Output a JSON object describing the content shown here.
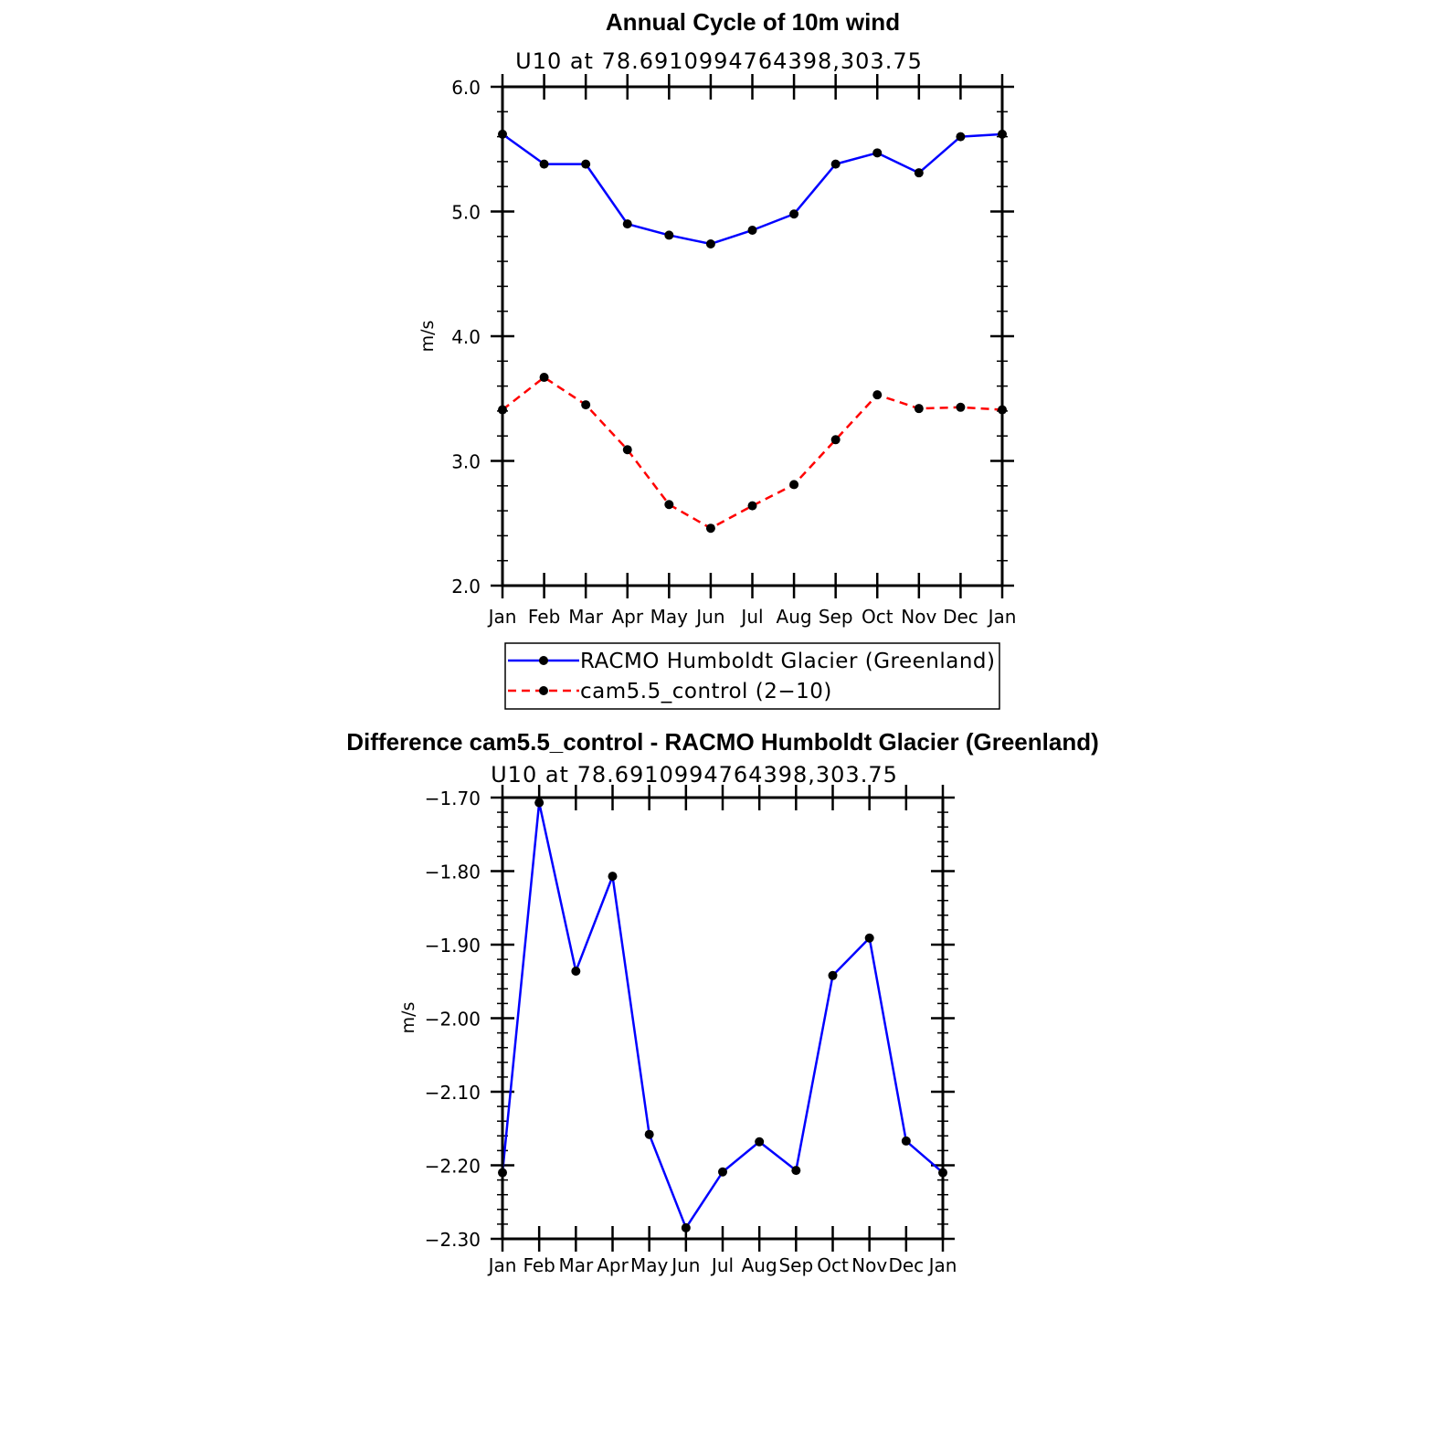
{
  "chart_data": [
    {
      "type": "line",
      "title": "Annual Cycle of 10m wind",
      "subtitle": "U10 at 78.6910994764398,303.75",
      "xlabel": "",
      "ylabel": "m/s",
      "categories": [
        "Jan",
        "Feb",
        "Mar",
        "Apr",
        "May",
        "Jun",
        "Jul",
        "Aug",
        "Sep",
        "Oct",
        "Nov",
        "Dec",
        "Jan"
      ],
      "ylim": [
        2.0,
        6.0
      ],
      "yticks": [
        "2.0",
        "3.0",
        "4.0",
        "5.0",
        "6.0"
      ],
      "ytick_values": [
        2.0,
        3.0,
        4.0,
        5.0,
        6.0
      ],
      "legend": "bottom",
      "series": [
        {
          "name": "RACMO Humboldt Glacier (Greenland)",
          "color": "#0000ff",
          "style": "solid",
          "values": [
            5.62,
            5.38,
            5.38,
            4.9,
            4.81,
            4.74,
            4.85,
            4.98,
            5.38,
            5.47,
            5.31,
            5.6,
            5.62
          ]
        },
        {
          "name": "cam5.5_control (2−10)",
          "color": "#ff0000",
          "style": "dashed",
          "values": [
            3.41,
            3.67,
            3.45,
            3.09,
            2.65,
            2.46,
            2.64,
            2.81,
            3.17,
            3.53,
            3.42,
            3.43,
            3.41
          ]
        }
      ]
    },
    {
      "type": "line",
      "title": "Difference cam5.5_control - RACMO Humboldt Glacier (Greenland)",
      "subtitle": "U10 at 78.6910994764398,303.75",
      "xlabel": "",
      "ylabel": "m/s",
      "categories": [
        "Jan",
        "Feb",
        "Mar",
        "Apr",
        "May",
        "Jun",
        "Jul",
        "Aug",
        "Sep",
        "Oct",
        "Nov",
        "Dec",
        "Jan"
      ],
      "ylim": [
        -2.3,
        -1.7
      ],
      "yticks": [
        "−2.30",
        "−2.20",
        "−2.10",
        "−2.00",
        "−1.90",
        "−1.80",
        "−1.70"
      ],
      "ytick_values": [
        -2.3,
        -2.2,
        -2.1,
        -2.0,
        -1.9,
        -1.8,
        -1.7
      ],
      "series": [
        {
          "name": "difference",
          "color": "#0000ff",
          "style": "solid",
          "values": [
            -2.21,
            -1.707,
            -1.936,
            -1.807,
            -2.158,
            -2.285,
            -2.209,
            -2.168,
            -2.207,
            -1.942,
            -1.891,
            -2.167,
            -2.21
          ]
        }
      ]
    }
  ]
}
